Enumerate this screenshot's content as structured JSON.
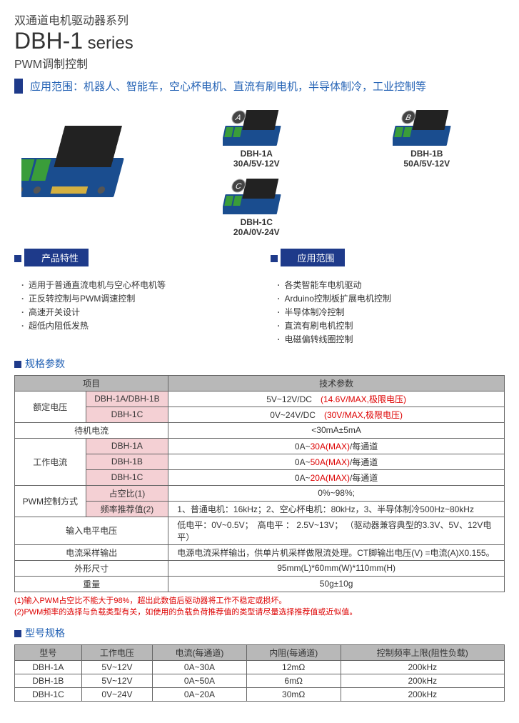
{
  "header": {
    "line1": "双通道电机驱动器系列",
    "line2_main": "DBH-1",
    "line2_suffix": " series",
    "line3": "PWM调制控制"
  },
  "application_bar": "应用范围：机器人、智能车，空心杯电机、直流有刷电机，半导体制冷，工业控制等",
  "sub_products": [
    {
      "badge": "A",
      "name": "DBH-1A",
      "spec": "30A/5V-12V"
    },
    {
      "badge": "B",
      "name": "DBH-1B",
      "spec": "50A/5V-12V"
    },
    {
      "badge": "C",
      "name": "DBH-1C",
      "spec": "20A/0V-24V"
    }
  ],
  "features": {
    "title": "产品特性",
    "items": [
      "适用于普通直流电机与空心杯电机等",
      "正反转控制与PWM调速控制",
      "高速开关设计",
      "超低内阻低发热"
    ]
  },
  "applications": {
    "title": "应用范围",
    "items": [
      "各类智能车电机驱动",
      "Arduino控制板扩展电机控制",
      "半导体制冷控制",
      "直流有刷电机控制",
      "电磁偏转线圈控制"
    ]
  },
  "spec_section_title": "规格参数",
  "spec_table": {
    "header_left": "项目",
    "header_right": "技术参数",
    "rated_voltage": {
      "label": "额定电压",
      "rows": [
        {
          "sub": "DBH-1A/DBH-1B",
          "val_plain": "5V~12V/DC",
          "val_red": "(14.6V/MAX,极限电压)"
        },
        {
          "sub": "DBH-1C",
          "val_plain": "0V~24V/DC",
          "val_red": "(30V/MAX,极限电压)"
        }
      ]
    },
    "standby_current": {
      "label": "待机电流",
      "val": "<30mA±5mA"
    },
    "work_current": {
      "label": "工作电流",
      "rows": [
        {
          "sub": "DBH-1A",
          "pre": "0A~",
          "red": "30A(MAX)",
          "post": "/每通道"
        },
        {
          "sub": "DBH-1B",
          "pre": "0A~",
          "red": "50A(MAX)",
          "post": "/每通道"
        },
        {
          "sub": "DBH-1C",
          "pre": "0A~",
          "red": "20A(MAX)",
          "post": "/每通道"
        }
      ]
    },
    "pwm": {
      "label": "PWM控制方式",
      "duty": {
        "sub": "占空比(1)",
        "val": "0%~98%;"
      },
      "freq": {
        "sub": "频率推荐值(2)",
        "val": "1、普通电机：16kHz；2、空心杯电机：80kHz，3、半导体制冷500Hz~80kHz"
      }
    },
    "input_level": {
      "label": "输入电平电压",
      "val": "低电平：0V~0.5V；　高电平 ： 2.5V~13V； （驱动器兼容典型的3.3V、5V、12V电平）"
    },
    "current_sample": {
      "label": "电流采样输出",
      "val": "电源电流采样输出，供单片机采样做限流处理。CT脚输出电压(V) =电流(A)X0.155。"
    },
    "dimension": {
      "label": "外形尺寸",
      "val": "95mm(L)*60mm(W)*110mm(H)"
    },
    "weight": {
      "label": "重量",
      "val": "50g±10g"
    }
  },
  "spec_notes": [
    "(1)输入PWM占空比不能大于98%，超出此数值后驱动器将工作不稳定或损坏。",
    "(2)PWM频率的选择与负载类型有关，如使用的负载负荷推荐值的类型请尽量选择推荐值或近似值。"
  ],
  "model_section_title": "型号规格",
  "model_table": {
    "headers": [
      "型号",
      "工作电压",
      "电流(每通道)",
      "内阻(每通道)",
      "控制频率上限(阻性负载)"
    ],
    "rows": [
      [
        "DBH-1A",
        "5V~12V",
        "0A~30A",
        "12mΩ",
        "200kHz"
      ],
      [
        "DBH-1B",
        "5V~12V",
        "0A~50A",
        "6mΩ",
        "200kHz"
      ],
      [
        "DBH-1C",
        "0V~24V",
        "0A~20A",
        "30mΩ",
        "200kHz"
      ]
    ]
  },
  "colors": {
    "navy": "#1e3a8a",
    "blue_text": "#2563b5",
    "pink_bg": "#f4d0d4",
    "gray_bg": "#b8b8b8",
    "red": "#d00",
    "pcb": "#1a4d8f",
    "heatsink": "#222",
    "terminal": "#3a9d3a"
  }
}
